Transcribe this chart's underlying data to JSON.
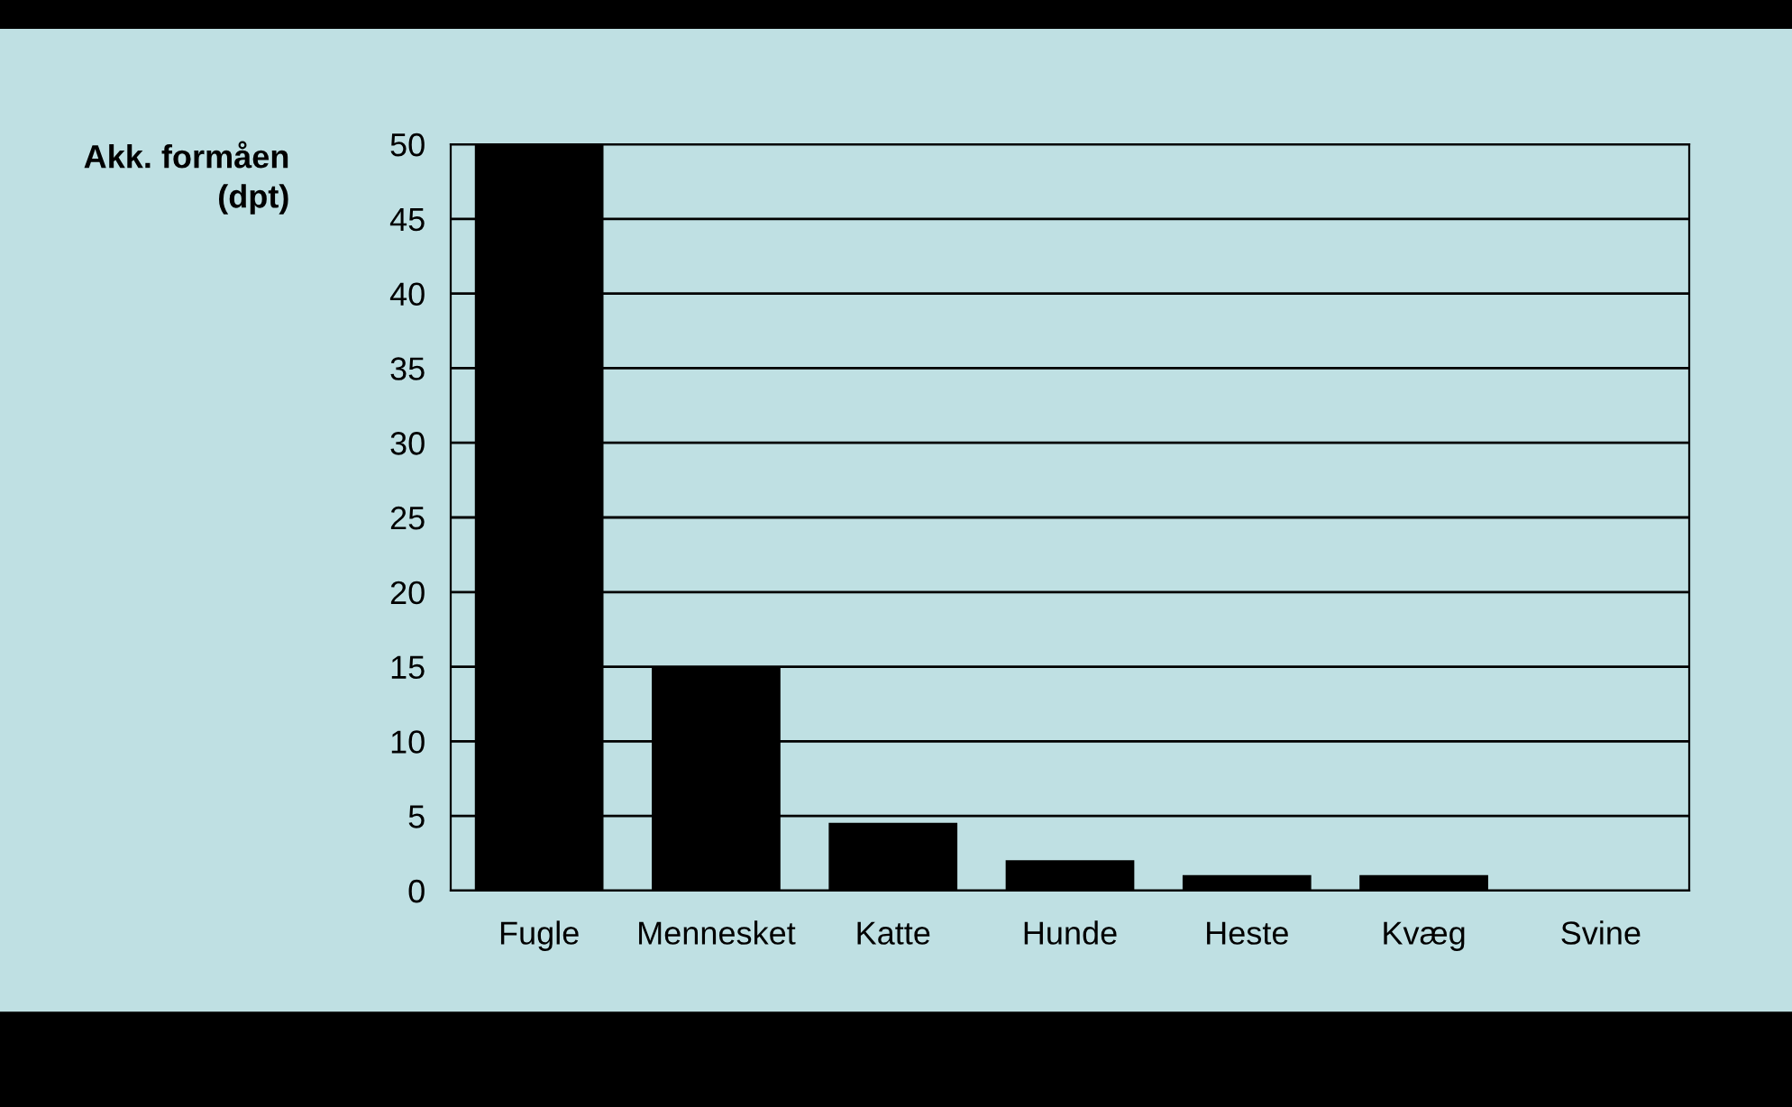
{
  "chart_data": {
    "type": "bar",
    "ylabel": "Akk. formåen\n(dpt)",
    "categories": [
      "Fugle",
      "Mennesket",
      "Katte",
      "Hunde",
      "Heste",
      "Kvæg",
      "Svine"
    ],
    "values": [
      50,
      15,
      4.5,
      2,
      1,
      1,
      0
    ],
    "color": "#000000",
    "ylim": [
      0,
      50
    ],
    "yticks": [
      0,
      5,
      10,
      15,
      20,
      25,
      30,
      35,
      40,
      45,
      50
    ],
    "grid": "y"
  }
}
